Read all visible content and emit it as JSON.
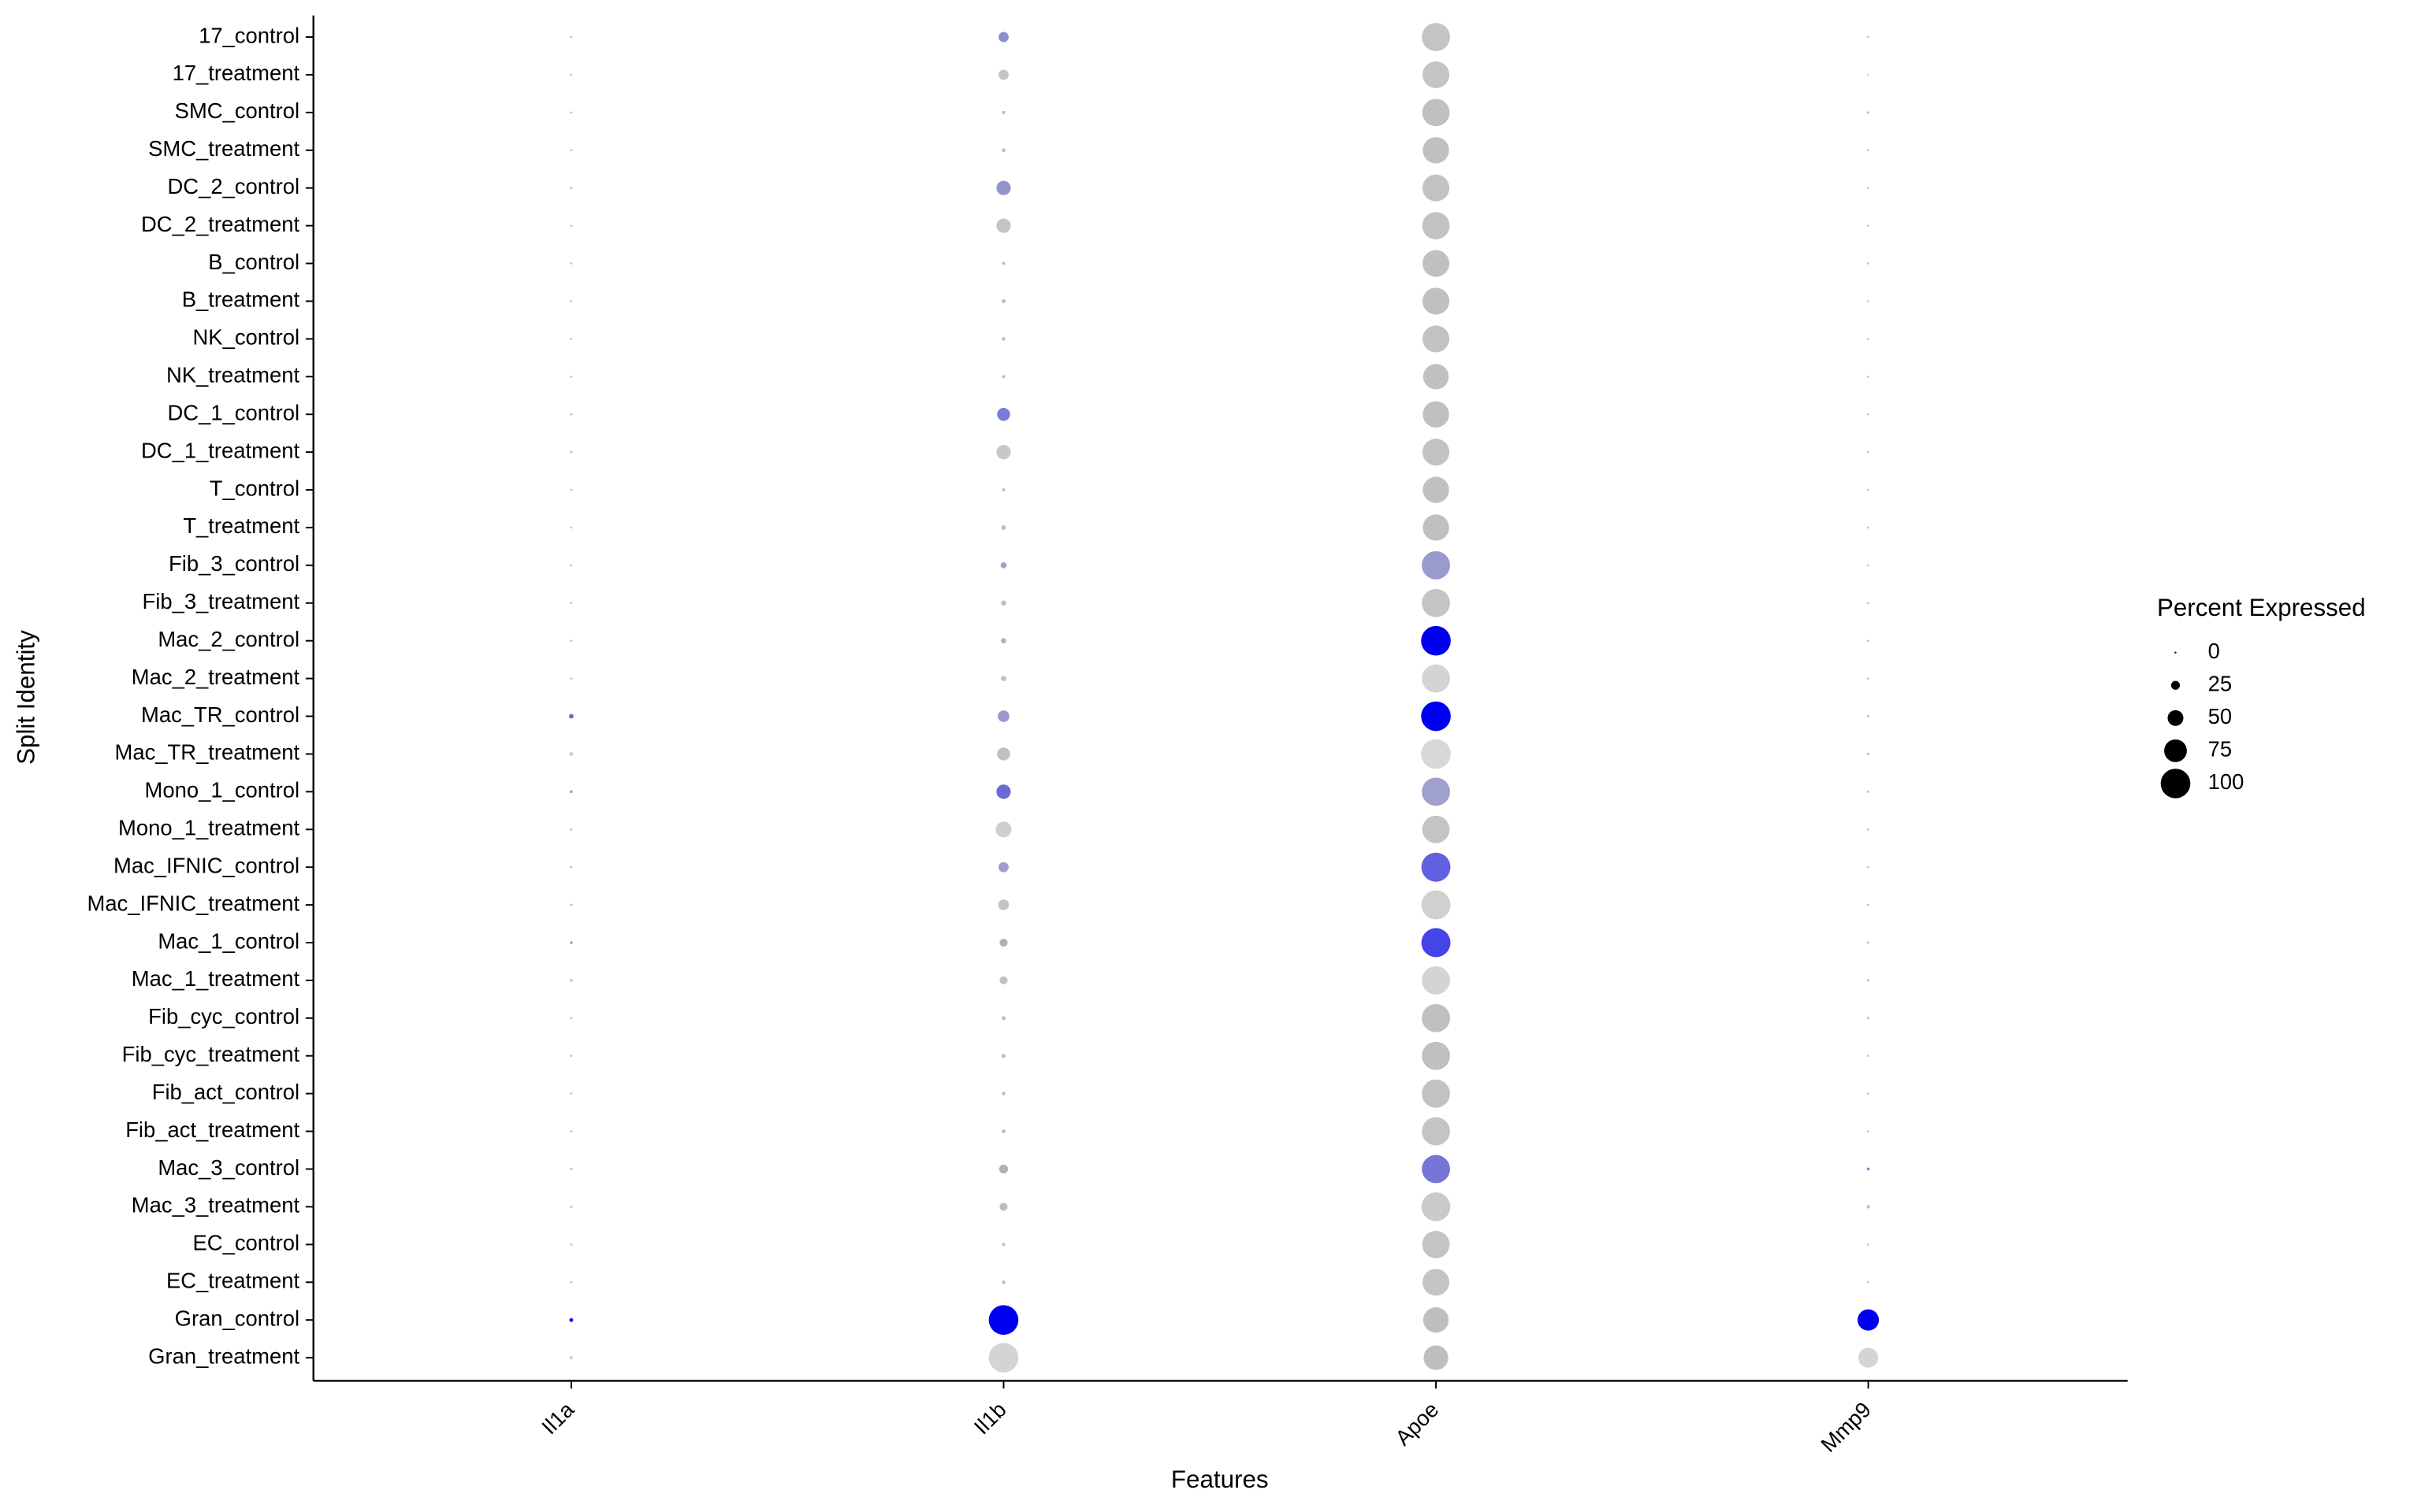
{
  "chart_data": {
    "type": "dot",
    "x_label": "Features",
    "y_label": "Split Identity",
    "rows": [
      "17_control",
      "17_treatment",
      "SMC_control",
      "SMC_treatment",
      "DC_2_control",
      "DC_2_treatment",
      "B_control",
      "B_treatment",
      "NK_control",
      "NK_treatment",
      "DC_1_control",
      "DC_1_treatment",
      "T_control",
      "T_treatment",
      "Fib_3_control",
      "Fib_3_treatment",
      "Mac_2_control",
      "Mac_2_treatment",
      "Mac_TR_control",
      "Mac_TR_treatment",
      "Mono_1_control",
      "Mono_1_treatment",
      "Mac_IFNIC_control",
      "Mac_IFNIC_treatment",
      "Mac_1_control",
      "Mac_1_treatment",
      "Fib_cyc_control",
      "Fib_cyc_treatment",
      "Fib_act_control",
      "Fib_act_treatment",
      "Mac_3_control",
      "Mac_3_treatment",
      "EC_control",
      "EC_treatment",
      "Gran_control",
      "Gran_treatment"
    ],
    "series": [
      {
        "name": "Il1a",
        "values": [
          1,
          1,
          1,
          1,
          2,
          1,
          1,
          1,
          1,
          1,
          2,
          2,
          1,
          1,
          1,
          1,
          1,
          1,
          10,
          8,
          3,
          2,
          2,
          2,
          3,
          3,
          1,
          1,
          1,
          1,
          2,
          2,
          1,
          1,
          8,
          6
        ],
        "colors": [
          "#bebebe",
          "#bebebe",
          "#bebebe",
          "#bebebe",
          "#bebebe",
          "#bebebe",
          "#bebebe",
          "#bebebe",
          "#bebebe",
          "#bebebe",
          "#bebebe",
          "#bebebe",
          "#bebebe",
          "#bebebe",
          "#bebebe",
          "#bebebe",
          "#bebebe",
          "#bebebe",
          "#6a6ae0",
          "#cfcfcf",
          "#9090d8",
          "#bebebe",
          "#bebebe",
          "#bebebe",
          "#9a9ae0",
          "#bebebe",
          "#bebebe",
          "#bebebe",
          "#bebebe",
          "#bebebe",
          "#bebebe",
          "#bebebe",
          "#bebebe",
          "#bebebe",
          "#2020f0",
          "#cfcfcf"
        ]
      },
      {
        "name": "Il1b",
        "values": [
          30,
          30,
          5,
          7,
          45,
          45,
          5,
          8,
          6,
          5,
          40,
          45,
          5,
          10,
          15,
          12,
          12,
          12,
          35,
          40,
          45,
          50,
          30,
          32,
          22,
          22,
          8,
          8,
          6,
          7,
          25,
          22,
          5,
          6,
          100,
          100
        ],
        "colors": [
          "#8f8fd0",
          "#c4c4c4",
          "#bebebe",
          "#bebebe",
          "#9494cc",
          "#c4c4c4",
          "#bebebe",
          "#bebebe",
          "#bebebe",
          "#bebebe",
          "#7a7ad8",
          "#c8c8c8",
          "#bebebe",
          "#bebebe",
          "#a0a0cc",
          "#bebebe",
          "#b4b4b4",
          "#bebebe",
          "#9999cc",
          "#c0c0c0",
          "#6a6ad8",
          "#cfcfcf",
          "#9e9ed0",
          "#c4c4c4",
          "#b0b0b8",
          "#c0c0c0",
          "#bebebe",
          "#bebebe",
          "#bebebe",
          "#bebebe",
          "#b0b0bc",
          "#bebebe",
          "#bebebe",
          "#bebebe",
          "#0000f0",
          "#d4d4d4"
        ]
      },
      {
        "name": "Apoe",
        "values": [
          95,
          90,
          92,
          88,
          90,
          92,
          90,
          90,
          90,
          85,
          88,
          90,
          88,
          88,
          95,
          95,
          100,
          95,
          100,
          100,
          95,
          92,
          98,
          98,
          98,
          95,
          95,
          95,
          95,
          95,
          95,
          97,
          92,
          90,
          85,
          82
        ],
        "colors": [
          "#c4c4c4",
          "#c4c4c4",
          "#c0c0c0",
          "#c0c0c0",
          "#c2c2c2",
          "#c2c2c2",
          "#c0c0c0",
          "#c0c0c0",
          "#c2c2c2",
          "#c0c0c0",
          "#c0c0c0",
          "#c2c2c2",
          "#c0c0c0",
          "#c0c0c0",
          "#9a9acc",
          "#c4c4c4",
          "#0000f0",
          "#d4d4d4",
          "#0000f0",
          "#d8d8d8",
          "#a0a0cc",
          "#c4c4c4",
          "#6060e0",
          "#d0d0d0",
          "#4444e8",
          "#d4d4d4",
          "#c0c0c0",
          "#c0c0c0",
          "#c2c2c2",
          "#c4c4c4",
          "#7676d8",
          "#cacaca",
          "#c4c4c4",
          "#c4c4c4",
          "#bebebe",
          "#bebebe"
        ]
      },
      {
        "name": "Mmp9",
        "values": [
          1,
          0,
          2,
          1,
          1,
          1,
          1,
          1,
          1,
          1,
          1,
          1,
          1,
          1,
          1,
          1,
          1,
          1,
          2,
          2,
          2,
          1,
          1,
          1,
          2,
          2,
          2,
          1,
          1,
          1,
          4,
          6,
          1,
          1,
          70,
          65
        ],
        "colors": [
          "#bebebe",
          "#bebebe",
          "#bebebe",
          "#bebebe",
          "#bebebe",
          "#bebebe",
          "#bebebe",
          "#bebebe",
          "#bebebe",
          "#bebebe",
          "#bebebe",
          "#bebebe",
          "#bebebe",
          "#bebebe",
          "#bebebe",
          "#bebebe",
          "#bebebe",
          "#bebebe",
          "#bebebe",
          "#bebebe",
          "#bebebe",
          "#bebebe",
          "#bebebe",
          "#bebebe",
          "#bebebe",
          "#bebebe",
          "#bebebe",
          "#bebebe",
          "#bebebe",
          "#bebebe",
          "#8888d8",
          "#c4c4c4",
          "#bebebe",
          "#bebebe",
          "#0000f0",
          "#d4d4d4"
        ]
      }
    ],
    "size_legend": {
      "title": "Percent Expressed",
      "values": [
        0,
        25,
        50,
        75,
        100
      ],
      "color": "#000000"
    }
  }
}
